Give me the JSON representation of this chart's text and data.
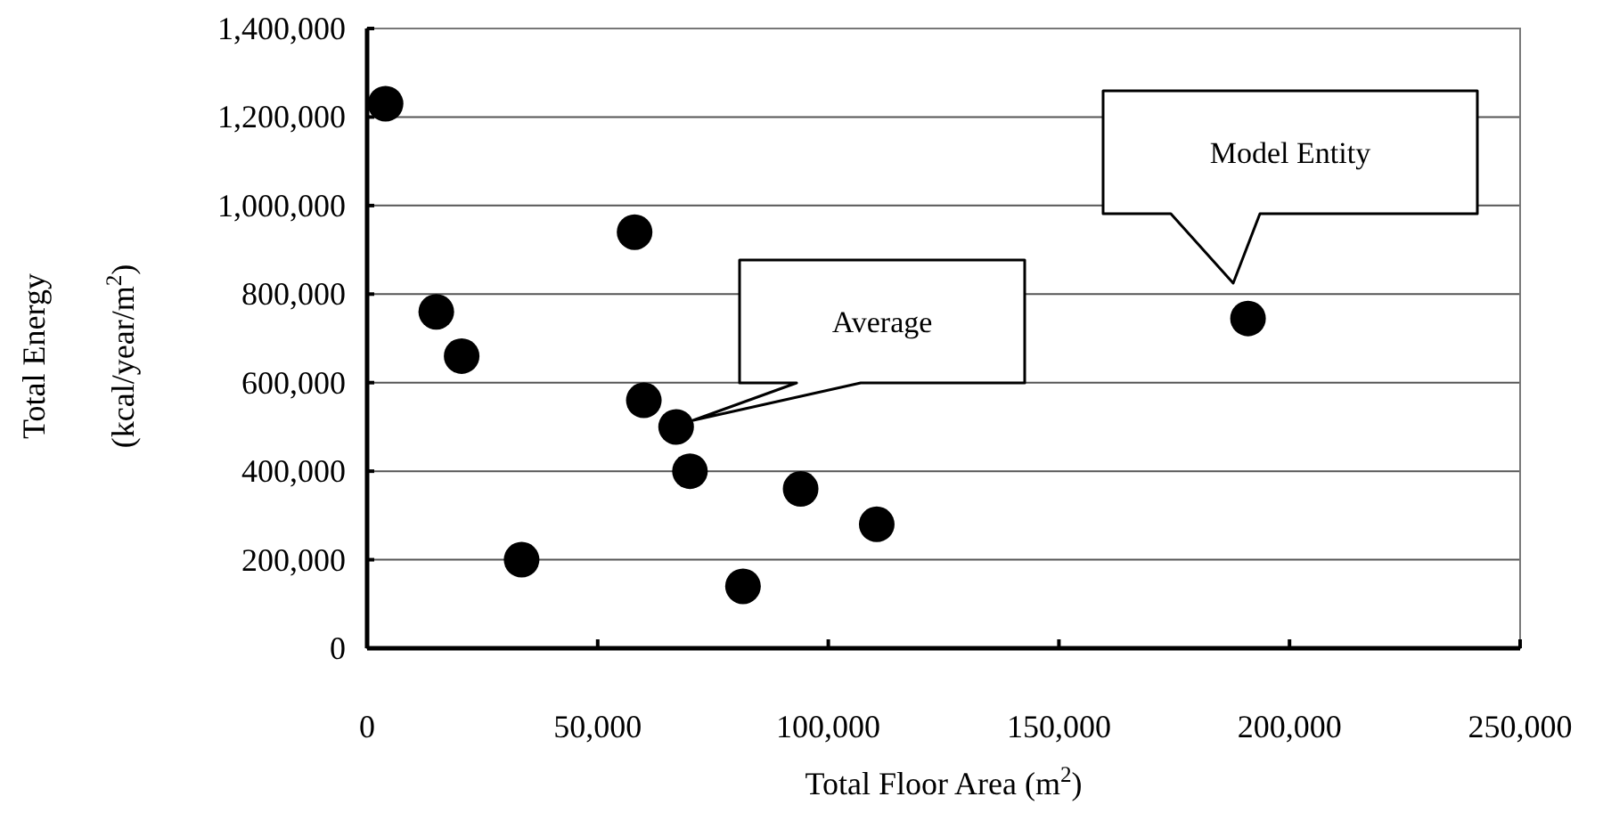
{
  "chart_data": {
    "type": "scatter",
    "xlabel": "Total Floor Area (m$^{2}$)",
    "ylabel": "Total Energy (kcal/year/m$^{2}$)",
    "x": [
      4000,
      58000,
      15000,
      20500,
      60000,
      67000,
      70000,
      33500,
      81500,
      94000,
      110500,
      191000
    ],
    "values": [
      1230000,
      940000,
      760000,
      660000,
      560000,
      500000,
      400000,
      200000,
      140000,
      360000,
      280000,
      745000
    ],
    "color": "#000000",
    "marker": "circle",
    "xlim": [
      0,
      250000
    ],
    "xticks": [
      {
        "value": 0,
        "label": "0"
      },
      {
        "value": 50000,
        "label": "50,000"
      },
      {
        "value": 100000,
        "label": "100,000"
      },
      {
        "value": 150000,
        "label": "150,000"
      },
      {
        "value": 200000,
        "label": "200,000"
      },
      {
        "value": 250000,
        "label": "250,000"
      }
    ],
    "ylim": [
      0,
      1400000
    ],
    "yticks": [
      {
        "value": 0,
        "label": "0"
      },
      {
        "value": 200000,
        "label": "200,000"
      },
      {
        "value": 400000,
        "label": "400,000"
      },
      {
        "value": 600000,
        "label": "600,000"
      },
      {
        "value": 800000,
        "label": "800,000"
      },
      {
        "value": 1000000,
        "label": "1,000,000"
      },
      {
        "value": 1200000,
        "label": "1,200,000"
      },
      {
        "value": 1400000,
        "label": "1,400,000"
      }
    ],
    "grid": "y",
    "annotations": [
      "Average",
      "Model Entity"
    ]
  }
}
